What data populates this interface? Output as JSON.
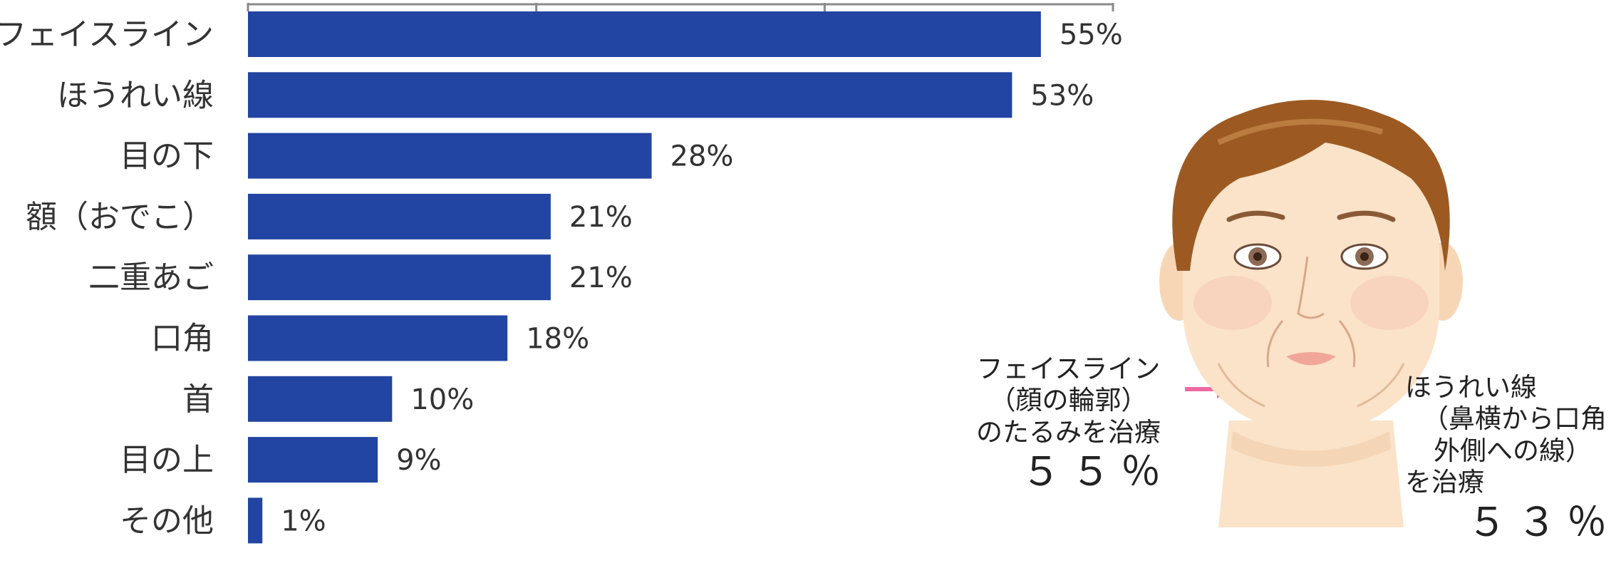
{
  "chart_data": {
    "type": "bar",
    "orientation": "horizontal",
    "categories": [
      "フェイスライン",
      "ほうれい線",
      "目の下",
      "額（おでこ）",
      "二重あご",
      "口角",
      "首",
      "目の上",
      "その他"
    ],
    "values": [
      55,
      53,
      28,
      21,
      21,
      18,
      10,
      9,
      1
    ],
    "value_labels": [
      "55%",
      "53%",
      "28%",
      "21%",
      "21%",
      "18%",
      "10%",
      "9%",
      "1%"
    ],
    "xlim": [
      0,
      60
    ],
    "bar_color": "#2244a2",
    "grid": false
  },
  "annotations": {
    "left": {
      "line1": "フェイスライン",
      "line2": "（顔の輪郭）",
      "line3": "のたるみを治療",
      "value": "５５％"
    },
    "right": {
      "line1": "ほうれい線",
      "line2": "（鼻横から口角",
      "line3": "外側への線）",
      "line4": "を治療",
      "value": "５３％"
    },
    "arrow_color": "#ee6aa0"
  }
}
